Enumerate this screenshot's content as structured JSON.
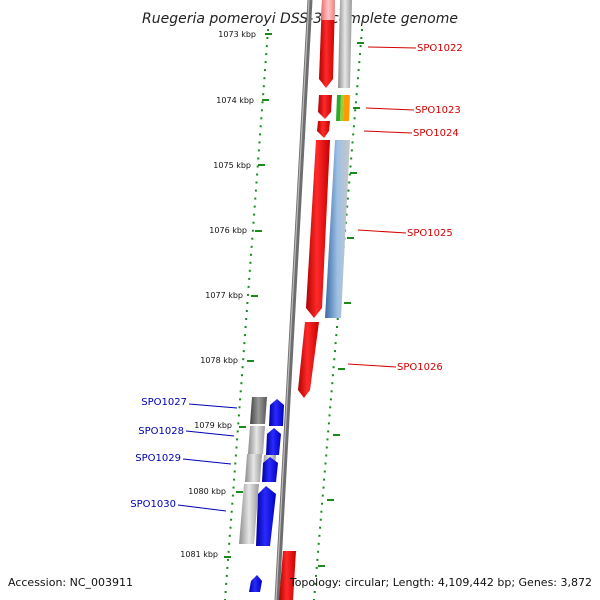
{
  "title": "Ruegeria pomeroyi DSS-3, complete genome",
  "footer": {
    "accession": "Accession: NC_003911",
    "topology": "Topology: circular; Length: 4,109,442 bp; Genes: 3,872"
  },
  "colors": {
    "forward_gene": "#ff0000",
    "reverse_gene": "#0000ff",
    "scale_dots": "#1a8a1a",
    "backbone": "#7a7a7a",
    "forward_label": "#d40000",
    "reverse_label": "#0000b4"
  },
  "kbp_labels": [
    "1073 kbp",
    "1074 kbp",
    "1075 kbp",
    "1076 kbp",
    "1077 kbp",
    "1078 kbp",
    "1079 kbp",
    "1080 kbp",
    "1081 kbp"
  ],
  "forward_genes": [
    "SPO1022",
    "SPO1023",
    "SPO1024",
    "SPO1025",
    "SPO1026"
  ],
  "reverse_genes": [
    "SPO1027",
    "SPO1028",
    "SPO1029",
    "SPO1030"
  ]
}
